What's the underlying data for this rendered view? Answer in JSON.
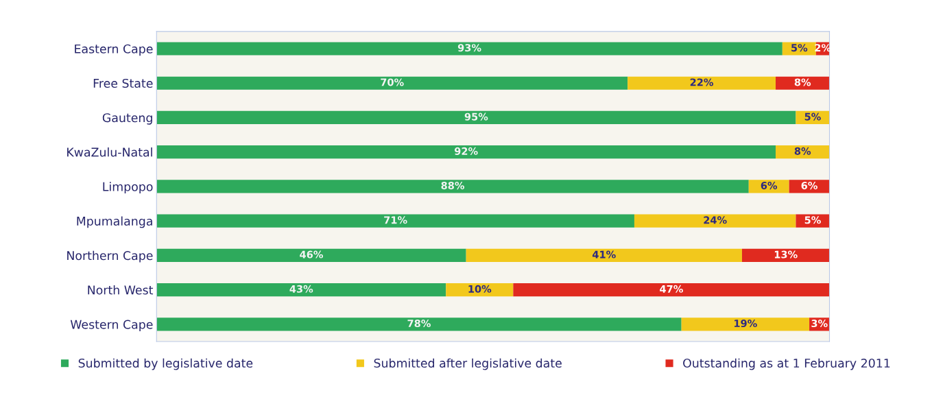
{
  "chart_data": {
    "type": "bar",
    "orientation": "horizontal",
    "stacked": true,
    "legend": "bottom",
    "grid": false,
    "categories": [
      "Eastern Cape",
      "Free State",
      "Gauteng",
      "KwaZulu-Natal",
      "Limpopo",
      "Mpumalanga",
      "Northern Cape",
      "North West",
      "Western Cape"
    ],
    "series": [
      {
        "name": "Submitted by legislative date",
        "color": "#2eaa5c",
        "values": [
          93,
          70,
          95,
          92,
          88,
          71,
          46,
          43,
          78
        ],
        "value_labels": [
          "93%",
          "70%",
          "95%",
          "92%",
          "88%",
          "71%",
          "46%",
          "43%",
          "78%"
        ]
      },
      {
        "name": "Submitted after legislative date",
        "color": "#f2c81c",
        "values": [
          5,
          22,
          5,
          8,
          6,
          24,
          41,
          10,
          19
        ],
        "value_labels": [
          "5%",
          "22%",
          "5%",
          "8%",
          "6%",
          "24%",
          "41%",
          "10%",
          "19%"
        ]
      },
      {
        "name": "Outstanding as at 1 February 2011",
        "color": "#e02a1f",
        "values": [
          2,
          8,
          null,
          null,
          6,
          5,
          13,
          47,
          3
        ],
        "value_labels": [
          "2%",
          "8%",
          null,
          null,
          "6%",
          "5%",
          "13%",
          "47%",
          "3%"
        ]
      }
    ]
  }
}
